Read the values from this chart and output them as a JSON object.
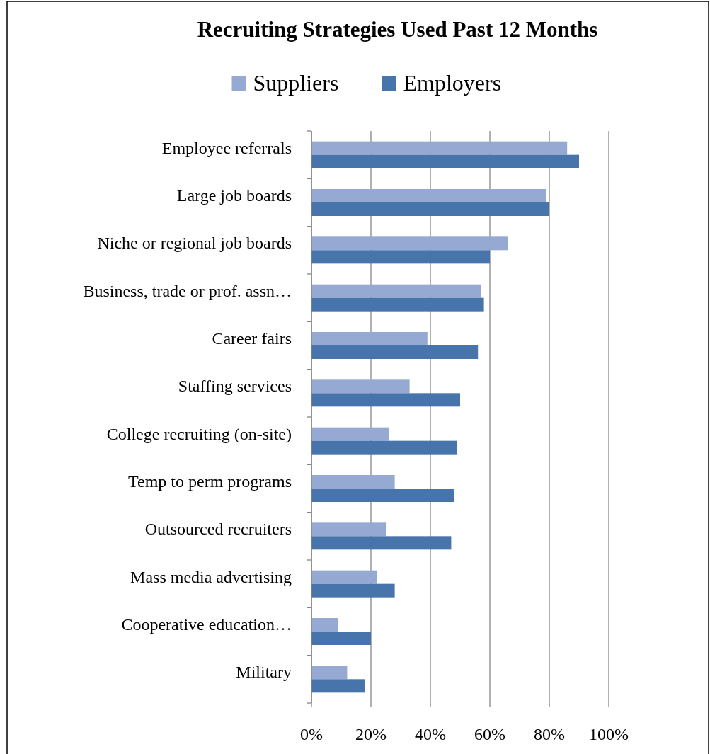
{
  "chart_data": {
    "type": "bar",
    "orientation": "horizontal",
    "title": "Recruiting Strategies Used Past 12 Months",
    "categories": [
      "Employee referrals",
      "Large job boards",
      "Niche or regional job boards",
      "Business, trade or prof. assn…",
      "Career fairs",
      "Staffing services",
      "College recruiting (on-site)",
      "Temp to perm programs",
      "Outsourced recruiters",
      "Mass media advertising",
      "Cooperative education…",
      "Military"
    ],
    "series": [
      {
        "name": "Suppliers",
        "color": "#95a9d2",
        "values": [
          86,
          79,
          66,
          57,
          39,
          33,
          26,
          28,
          25,
          22,
          9,
          12
        ]
      },
      {
        "name": "Employers",
        "color": "#4674ab",
        "values": [
          90,
          80,
          60,
          58,
          56,
          50,
          49,
          48,
          47,
          28,
          20,
          18
        ]
      }
    ],
    "xlim": [
      0,
      100
    ],
    "xticks": [
      {
        "value": 0,
        "label": "0%"
      },
      {
        "value": 20,
        "label": "20%"
      },
      {
        "value": 40,
        "label": "40%"
      },
      {
        "value": 60,
        "label": "60%"
      },
      {
        "value": 80,
        "label": "80%"
      },
      {
        "value": 100,
        "label": "100%"
      }
    ],
    "grid": "x",
    "legend": "top"
  }
}
